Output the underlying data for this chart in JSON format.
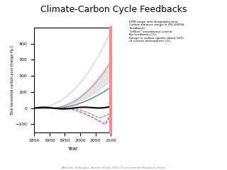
{
  "title": "Climate-Carbon Cycle Feedbacks",
  "xlabel": "Year",
  "ylabel": "Total terrestrial carbon pool change Pg C",
  "xlim": [
    1850,
    2100
  ],
  "ylim": [
    -150,
    500
  ],
  "yticks": [
    -100,
    0,
    100,
    200,
    300,
    400
  ],
  "citation": "Ahlström, Schurgers, Arneth, Smith, 2012, Environmental Research Letters",
  "annotation_text": "ESM range with biogeophysical\nCarbon balance range in LPJ-GUESS\nfeedbacks\n\"offline\" simulations current\nNo feedbacks CO₂\nRange in carbon uptake about 50%\nof current atmospheric CO₂"
}
